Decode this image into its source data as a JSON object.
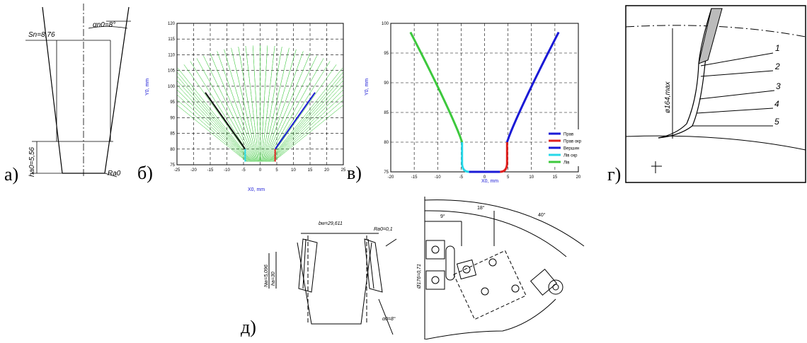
{
  "panels": {
    "a": {
      "label": "а)",
      "alpha": "αn0=8°",
      "sn": "Sn=8,76",
      "ha": "ha0=5,56",
      "r": "Ra0"
    },
    "b": {
      "label": "б)",
      "ylabel": "Y0, mm",
      "xlabel": "X0, mm",
      "xticks": [
        "-25",
        "-20",
        "-15",
        "-10",
        "-5",
        "0",
        "5",
        "10",
        "15",
        "20",
        "25"
      ],
      "yticks": [
        "75",
        "80",
        "85",
        "90",
        "95",
        "100",
        "105",
        "110",
        "115",
        "120"
      ]
    },
    "c": {
      "label": "в)",
      "ylabel": "Y0, mm",
      "xlabel": "X0, mm",
      "xticks": [
        "-20",
        "-15",
        "-10",
        "-5",
        "0",
        "5",
        "10",
        "15",
        "20"
      ],
      "yticks": [
        "75",
        "80",
        "85",
        "90",
        "95",
        "100"
      ],
      "legend": [
        {
          "text": "Прав",
          "color": "#1a1ad6"
        },
        {
          "text": "Прав окр",
          "color": "#e0201e"
        },
        {
          "text": "Вершин",
          "color": "#1a1ad6"
        },
        {
          "text": "Лів окр",
          "color": "#27d8e8"
        },
        {
          "text": "Лів",
          "color": "#3dc83d"
        }
      ]
    },
    "g": {
      "label": "г)",
      "dim": "ø164,max",
      "callouts": [
        "1",
        "2",
        "3",
        "4",
        "5"
      ]
    },
    "d": {
      "label": "д)",
      "bw": "bw=29,611",
      "ra": "Ra0=0,1",
      "h1": "ha=30",
      "h2": "Nw=5,096",
      "alpha": "α0=8°",
      "dim": "Ø176=0,71",
      "a1": "9°",
      "a2": "18°",
      "a3": "40°"
    }
  }
}
